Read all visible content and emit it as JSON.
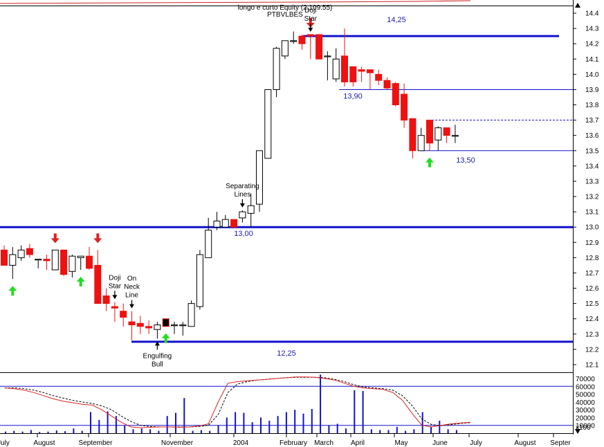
{
  "title": "longo e curto Equity (2,109.55)",
  "subtitle": "PTBVLBES",
  "colors": {
    "up_fill": "#ffffff",
    "down_fill": "#ee1111",
    "outline": "#000000",
    "line": "#1111cc",
    "osc_main": "#dd2222",
    "osc_signal": "#000000",
    "volume": "#1111cc",
    "arrow_up": "#22dd22",
    "arrow_down": "#dd2222",
    "frame_top": "#cc2222"
  },
  "chart_data": [
    {
      "type": "candlestick",
      "x_ticks": [
        "July",
        "August",
        "September",
        "November",
        "2004",
        "February",
        "March",
        "April",
        "May",
        "June",
        "July",
        "August",
        "Septer"
      ],
      "ylim": [
        12.05,
        14.45
      ],
      "y_ticks": [
        "12.1",
        "12.2",
        "12.3",
        "12.4",
        "12.5",
        "12.6",
        "12.7",
        "12.8",
        "12.9",
        "13.0",
        "13.1",
        "13.2",
        "13.3",
        "13.4",
        "13.5",
        "13.6",
        "13.7",
        "13.8",
        "13.9",
        "14.0",
        "14.1",
        "14.2",
        "14.3",
        "14.4"
      ],
      "candles": [
        {
          "o": 12.85,
          "h": 12.88,
          "l": 12.75,
          "c": 12.75
        },
        {
          "o": 12.75,
          "h": 12.87,
          "l": 12.66,
          "c": 12.82
        },
        {
          "o": 12.8,
          "h": 12.88,
          "l": 12.78,
          "c": 12.85
        },
        {
          "o": 12.86,
          "h": 12.89,
          "l": 12.8,
          "c": 12.82
        },
        {
          "o": 12.79,
          "h": 12.79,
          "l": 12.73,
          "c": 12.79
        },
        {
          "o": 12.79,
          "h": 12.82,
          "l": 12.72,
          "c": 12.78
        },
        {
          "o": 12.72,
          "h": 12.85,
          "l": 12.72,
          "c": 12.85
        },
        {
          "o": 12.85,
          "h": 12.85,
          "l": 12.68,
          "c": 12.69
        },
        {
          "o": 12.71,
          "h": 12.82,
          "l": 12.67,
          "c": 12.81
        },
        {
          "o": 12.8,
          "h": 12.81,
          "l": 12.72,
          "c": 12.81
        },
        {
          "o": 12.81,
          "h": 12.87,
          "l": 12.72,
          "c": 12.73
        },
        {
          "o": 12.75,
          "h": 12.85,
          "l": 12.5,
          "c": 12.5
        },
        {
          "o": 12.55,
          "h": 12.6,
          "l": 12.45,
          "c": 12.5
        },
        {
          "o": 12.48,
          "h": 12.51,
          "l": 12.38,
          "c": 12.47
        },
        {
          "o": 12.45,
          "h": 12.5,
          "l": 12.35,
          "c": 12.41
        },
        {
          "o": 12.38,
          "h": 12.45,
          "l": 12.26,
          "c": 12.36
        },
        {
          "o": 12.37,
          "h": 12.42,
          "l": 12.3,
          "c": 12.35
        },
        {
          "o": 12.35,
          "h": 12.39,
          "l": 12.3,
          "c": 12.34
        },
        {
          "o": 12.33,
          "h": 12.38,
          "l": 12.27,
          "c": 12.36
        },
        {
          "o": 12.4,
          "h": 12.4,
          "l": 12.35,
          "c": 12.35
        },
        {
          "o": 12.36,
          "h": 12.38,
          "l": 12.3,
          "c": 12.36
        },
        {
          "o": 12.36,
          "h": 12.38,
          "l": 12.29,
          "c": 12.36
        },
        {
          "o": 12.35,
          "h": 12.52,
          "l": 12.35,
          "c": 12.5
        },
        {
          "o": 12.48,
          "h": 12.85,
          "l": 12.46,
          "c": 12.82
        },
        {
          "o": 12.8,
          "h": 13.06,
          "l": 12.8,
          "c": 12.98
        },
        {
          "o": 13.0,
          "h": 13.1,
          "l": 12.98,
          "c": 13.04
        },
        {
          "o": 13.0,
          "h": 13.08,
          "l": 13.0,
          "c": 13.05
        },
        {
          "o": 13.05,
          "h": 13.05,
          "l": 13.0,
          "c": 13.0
        },
        {
          "o": 13.06,
          "h": 13.11,
          "l": 13.03,
          "c": 13.1
        },
        {
          "o": 13.09,
          "h": 13.22,
          "l": 13.0,
          "c": 13.14
        },
        {
          "o": 13.15,
          "h": 13.5,
          "l": 13.1,
          "c": 13.5
        },
        {
          "o": 13.45,
          "h": 13.9,
          "l": 13.45,
          "c": 13.9
        },
        {
          "o": 13.9,
          "h": 14.18,
          "l": 13.85,
          "c": 14.17
        },
        {
          "o": 14.12,
          "h": 14.22,
          "l": 14.1,
          "c": 14.22
        },
        {
          "o": 14.22,
          "h": 14.28,
          "l": 14.2,
          "c": 14.22
        },
        {
          "o": 14.25,
          "h": 14.26,
          "l": 14.16,
          "c": 14.2
        },
        {
          "o": 14.26,
          "h": 14.26,
          "l": 14.1,
          "c": 14.25
        },
        {
          "o": 14.26,
          "h": 14.26,
          "l": 14.1,
          "c": 14.1
        },
        {
          "o": 14.12,
          "h": 14.15,
          "l": 13.96,
          "c": 14.12
        },
        {
          "o": 13.97,
          "h": 14.17,
          "l": 13.95,
          "c": 14.1
        },
        {
          "o": 14.12,
          "h": 14.3,
          "l": 13.92,
          "c": 13.95
        },
        {
          "o": 14.05,
          "h": 14.05,
          "l": 13.92,
          "c": 13.95
        },
        {
          "o": 14.03,
          "h": 14.05,
          "l": 13.95,
          "c": 14.02
        },
        {
          "o": 14.03,
          "h": 14.03,
          "l": 13.9,
          "c": 14.01
        },
        {
          "o": 14.0,
          "h": 14.03,
          "l": 13.93,
          "c": 13.96
        },
        {
          "o": 13.96,
          "h": 13.98,
          "l": 13.9,
          "c": 13.91
        },
        {
          "o": 13.94,
          "h": 13.95,
          "l": 13.79,
          "c": 13.8
        },
        {
          "o": 13.87,
          "h": 13.94,
          "l": 13.65,
          "c": 13.7
        },
        {
          "o": 13.71,
          "h": 13.71,
          "l": 13.45,
          "c": 13.5
        },
        {
          "o": 13.5,
          "h": 13.65,
          "l": 13.5,
          "c": 13.6
        },
        {
          "o": 13.7,
          "h": 13.7,
          "l": 13.5,
          "c": 13.55
        },
        {
          "o": 13.57,
          "h": 13.66,
          "l": 13.5,
          "c": 13.65
        },
        {
          "o": 13.65,
          "h": 13.65,
          "l": 13.55,
          "c": 13.6
        },
        {
          "o": 13.6,
          "h": 13.67,
          "l": 13.55,
          "c": 13.6
        }
      ],
      "horizontal_lines": [
        {
          "value": 14.25,
          "label": "14,25"
        },
        {
          "value": 13.9,
          "label": "13,90"
        },
        {
          "value": 13.7,
          "label": "",
          "style": "dashed"
        },
        {
          "value": 13.5,
          "label": "13,50"
        },
        {
          "value": 13.0,
          "label": "13,00"
        },
        {
          "value": 12.25,
          "label": "12,25"
        }
      ],
      "annotations": [
        {
          "text": [
            "Doji",
            "Star"
          ],
          "candle": 36,
          "arrow": "down"
        },
        {
          "text": [
            "Separating",
            "Lines"
          ],
          "candle": 28,
          "arrow": "down"
        },
        {
          "text": [
            "Doji",
            "Star"
          ],
          "candle": 13,
          "arrow": "down"
        },
        {
          "text": [
            "On",
            "Neck",
            "Line"
          ],
          "candle": 15,
          "arrow": "down"
        },
        {
          "text": [
            "Engulfing",
            "Bull"
          ],
          "candle": 18,
          "arrow": "up"
        }
      ],
      "signal_arrows": [
        {
          "candle": 1,
          "dir": "up"
        },
        {
          "candle": 6,
          "dir": "down"
        },
        {
          "candle": 9,
          "dir": "up"
        },
        {
          "candle": 11,
          "dir": "down"
        },
        {
          "candle": 19,
          "dir": "up"
        },
        {
          "candle": 36,
          "dir": "down"
        },
        {
          "candle": 50,
          "dir": "up"
        }
      ]
    },
    {
      "type": "volume_oscillator",
      "ylim": [
        0,
        78000
      ],
      "y_ticks": [
        "70000",
        "60000",
        "50000",
        "40000",
        "30000",
        "20000",
        "10000",
        "x100"
      ],
      "h_lines": [
        60000,
        10000
      ],
      "volume": [
        2000,
        3000,
        2000,
        4000,
        1500,
        2000,
        3500,
        2500,
        6000,
        3000,
        27000,
        17000,
        28000,
        22000,
        10000,
        5000,
        6000,
        5000,
        3000,
        22000,
        26000,
        45000,
        3000,
        4000,
        3000,
        10000,
        20000,
        27000,
        26000,
        14000,
        20000,
        16000,
        22000,
        27000,
        30000,
        25000,
        31000,
        75000,
        10000,
        12000,
        6000,
        55000,
        54000,
        5000,
        4000,
        4000,
        8000,
        3000,
        5000,
        27000,
        8000,
        16000,
        5000,
        4000
      ],
      "oscillator": [
        58000,
        57000,
        55000,
        52000,
        48000,
        44000,
        41000,
        39000,
        37000,
        36000,
        30000,
        22000,
        14000,
        8000,
        7000,
        7500,
        8000,
        8000,
        7500,
        8000,
        9000,
        12000,
        40000,
        64000,
        66000,
        67000,
        68000,
        69000,
        70000,
        71000,
        72000,
        72000,
        71500,
        70000,
        68000,
        64000,
        60000,
        58000,
        57000,
        56000,
        52000,
        42000,
        25000,
        10000,
        8000,
        10000,
        12000,
        13000,
        14000
      ],
      "oscillator_signal": [
        58000,
        58000,
        57000,
        55000,
        52000,
        48000,
        45000,
        42000,
        40000,
        38000,
        35000,
        30000,
        22000,
        15000,
        10000,
        8500,
        8000,
        8000,
        8000,
        8000,
        8500,
        10000,
        24000,
        52000,
        63000,
        66000,
        68000,
        69000,
        70000,
        71000,
        71500,
        71500,
        71500,
        71000,
        69000,
        66000,
        62000,
        59000,
        58000,
        57000,
        55000,
        48000,
        35000,
        18000,
        11000,
        9500,
        11000,
        12500,
        13500
      ]
    }
  ]
}
